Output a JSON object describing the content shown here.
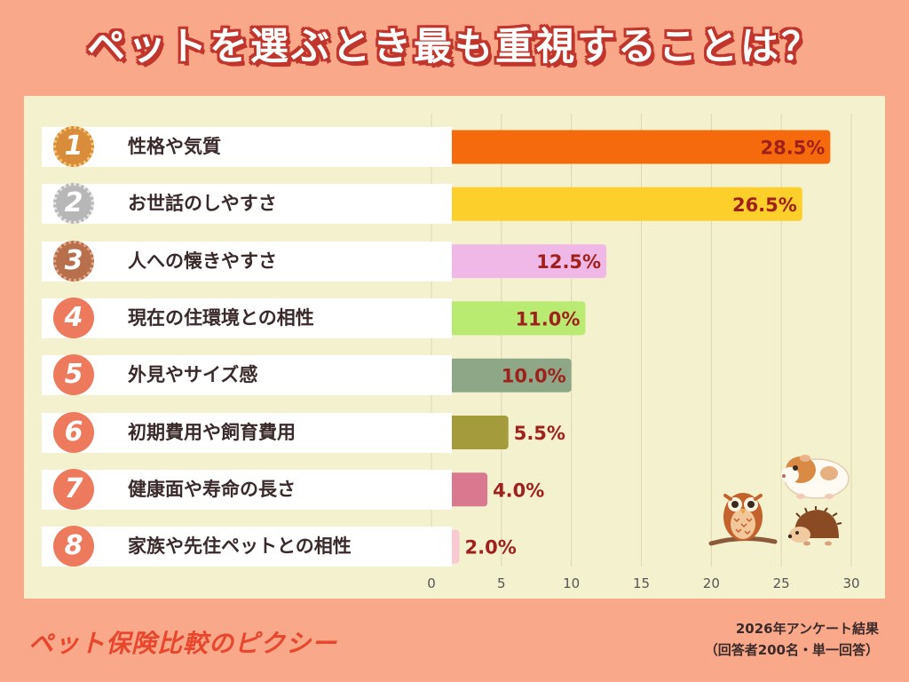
{
  "title": "ペットを選ぶとき最も重視することは？",
  "colors": {
    "background": "#f9a88a",
    "panel": "#f4f1cf",
    "title_outline": "#c0362c",
    "value_label": "#a0201c",
    "gold": "#d98c3a",
    "silver": "#b7b7b7",
    "bronze": "#b8704c",
    "rank_circle": "#ee7a5d"
  },
  "chart_data": {
    "type": "bar",
    "orientation": "horizontal",
    "categories": [
      "性格や気質",
      "お世話のしやすさ",
      "人への懐きやすさ",
      "現在の住環境との相性",
      "外見やサイズ感",
      "初期費用や飼育費用",
      "健康面や寿命の長さ",
      "家族や先住ペットとの相性"
    ],
    "ranks": [
      "1",
      "2",
      "3",
      "4",
      "5",
      "6",
      "7",
      "8"
    ],
    "values": [
      28.5,
      26.5,
      12.5,
      11.0,
      10.0,
      5.5,
      4.0,
      2.0
    ],
    "value_labels": [
      "28.5%",
      "26.5%",
      "12.5%",
      "11.0%",
      "10.0%",
      "5.5%",
      "4.0%",
      "2.0%"
    ],
    "bar_colors": [
      "#f56a0c",
      "#fccf2a",
      "#f0b8e6",
      "#b9ea72",
      "#8ea887",
      "#a39b3c",
      "#d9788e",
      "#f8c9d3"
    ],
    "xlim": [
      0,
      30
    ],
    "xticks": [
      "0",
      "5",
      "10",
      "15",
      "20",
      "25",
      "30"
    ],
    "grid": true,
    "title": "ペットを選ぶとき最も重視することは？"
  },
  "footer": {
    "brand": "ペット保険比較のピクシー",
    "note_line1": "2026年アンケート結果",
    "note_line2": "（回答者200名・単一回答）"
  },
  "icons": [
    "owl-illustration",
    "guinea-pig-illustration",
    "hedgehog-illustration"
  ]
}
